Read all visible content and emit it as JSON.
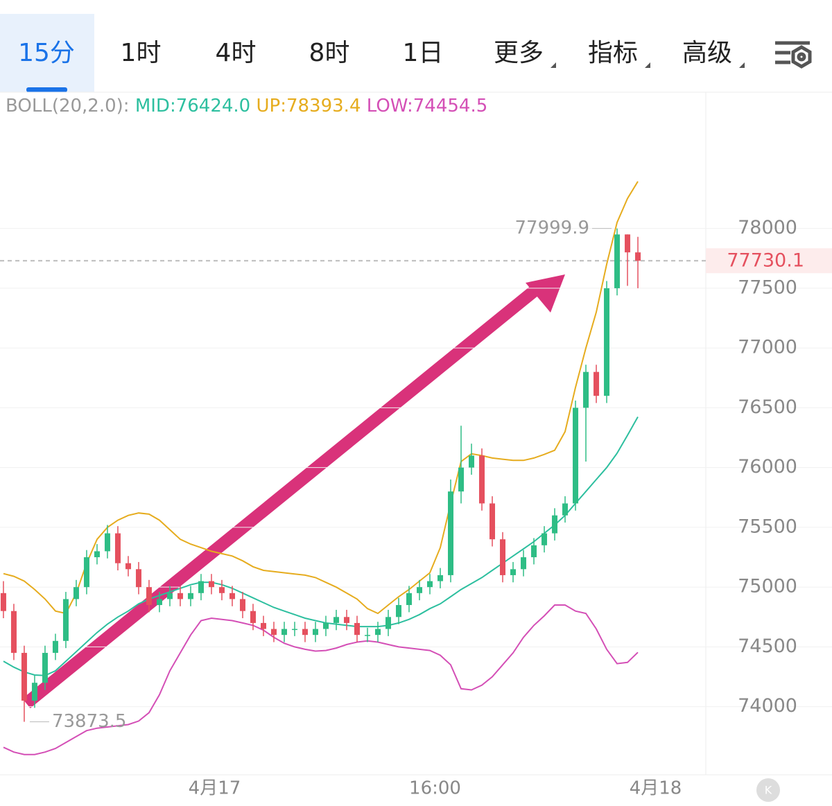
{
  "tabs": [
    "15分",
    "1时",
    "4时",
    "8时",
    "1日",
    "更多",
    "指标",
    "高级"
  ],
  "active_tab": 0,
  "chart_data": {
    "type": "candlestick",
    "indicator": {
      "label": "BOLL(20,2.0):",
      "series": [
        {
          "label": "MID:76424.0",
          "color": "#2dbf9f",
          "values": [
            74380,
            74330,
            74290,
            74265,
            74260,
            74300,
            74380,
            74460,
            74540,
            74620,
            74690,
            74750,
            74800,
            74860,
            74900,
            74930,
            74960,
            74990,
            75020,
            75040,
            75040,
            75020,
            74990,
            74950,
            74910,
            74870,
            74830,
            74800,
            74770,
            74740,
            74720,
            74700,
            74690,
            74680,
            74670,
            74670,
            74670,
            74680,
            74700,
            74730,
            74770,
            74820,
            74860,
            74920,
            74980,
            75030,
            75080,
            75140,
            75200,
            75260,
            75320,
            75380,
            75450,
            75520,
            75600,
            75700,
            75800,
            75900,
            76000,
            76120,
            76270,
            76424
          ]
        },
        {
          "label": "UP:78393.4",
          "color": "#e6ac1e",
          "values": [
            75113,
            75090,
            75050,
            74980,
            74900,
            74800,
            74780,
            74950,
            75200,
            75400,
            75500,
            75560,
            75600,
            75620,
            75610,
            75560,
            75480,
            75400,
            75360,
            75330,
            75300,
            75280,
            75260,
            75220,
            75170,
            75140,
            75130,
            75120,
            75110,
            75100,
            75080,
            75040,
            75000,
            74950,
            74900,
            74820,
            74780,
            74850,
            74920,
            74980,
            75050,
            75120,
            75330,
            75700,
            76050,
            76115,
            76100,
            76080,
            76070,
            76060,
            76060,
            76080,
            76110,
            76145,
            76300,
            76670,
            77000,
            77300,
            77700,
            78050,
            78250,
            78393.4
          ]
        },
        {
          "label": "LOW:74454.5",
          "color": "#d44fb6",
          "values": [
            73660,
            73620,
            73600,
            73600,
            73620,
            73650,
            73700,
            73750,
            73800,
            73820,
            73830,
            73840,
            73850,
            73880,
            73950,
            74100,
            74300,
            74450,
            74600,
            74720,
            74740,
            74730,
            74720,
            74700,
            74680,
            74640,
            74580,
            74530,
            74500,
            74480,
            74465,
            74470,
            74490,
            74520,
            74540,
            74550,
            74540,
            74520,
            74500,
            74490,
            74480,
            74470,
            74430,
            74350,
            74150,
            74140,
            74180,
            74250,
            74350,
            74450,
            74580,
            74680,
            74760,
            74850,
            74850,
            74800,
            74780,
            74650,
            74480,
            74360,
            74370,
            74454.5
          ]
        }
      ]
    },
    "open": [
      74950,
      74800,
      74450,
      74050,
      74200,
      74450,
      74550,
      74900,
      75000,
      75250,
      75300,
      75450,
      75200,
      75150,
      75000,
      74850,
      74900,
      74950,
      74900,
      74950,
      75050,
      75000,
      74950,
      74900,
      74800,
      74700,
      74650,
      74600,
      74650,
      74650,
      74600,
      74650,
      74700,
      74750,
      74700,
      74600,
      74600,
      74650,
      74750,
      74850,
      74950,
      75000,
      75050,
      75100,
      75800,
      76000,
      76100,
      75700,
      75400,
      75100,
      75150,
      75250,
      75350,
      75450,
      75600,
      75700,
      76500,
      76800,
      76600,
      77500,
      77950,
      77800
    ],
    "high": [
      75050,
      74860,
      74510,
      74260,
      74510,
      74610,
      74960,
      75060,
      75310,
      75360,
      75520,
      75510,
      75260,
      75210,
      75060,
      74960,
      75010,
      75010,
      75010,
      75110,
      75110,
      75060,
      75010,
      74960,
      74860,
      74760,
      74710,
      74710,
      74710,
      74710,
      74710,
      74760,
      74810,
      74810,
      74760,
      74660,
      74710,
      74810,
      74910,
      75010,
      75060,
      75110,
      75160,
      75900,
      76350,
      76200,
      76160,
      75760,
      75460,
      75210,
      75310,
      75410,
      75510,
      75660,
      75760,
      76560,
      76860,
      76860,
      77560,
      77999.9,
      77950,
      77930
    ],
    "low": [
      74740,
      74390,
      73873.5,
      73990,
      74140,
      74390,
      74490,
      74840,
      74940,
      75190,
      75240,
      75140,
      75090,
      74940,
      74790,
      74790,
      74840,
      74840,
      74840,
      74890,
      74940,
      74890,
      74840,
      74740,
      74640,
      74590,
      74540,
      74540,
      74590,
      74540,
      74540,
      74590,
      74640,
      74640,
      74540,
      74540,
      74540,
      74590,
      74690,
      74790,
      74890,
      74940,
      74990,
      75040,
      75700,
      75940,
      75640,
      75340,
      75040,
      75040,
      75090,
      75190,
      75290,
      75390,
      75540,
      75640,
      76050,
      76540,
      76540,
      77440,
      77520,
      77500
    ],
    "close": [
      74800,
      74450,
      74050,
      74200,
      74450,
      74550,
      74900,
      75000,
      75250,
      75300,
      75450,
      75200,
      75150,
      75000,
      74850,
      74900,
      74950,
      74900,
      74950,
      75050,
      75000,
      74950,
      74900,
      74800,
      74700,
      74650,
      74600,
      74650,
      74650,
      74600,
      74650,
      74700,
      74750,
      74700,
      74600,
      74600,
      74650,
      74750,
      74850,
      74950,
      75000,
      75050,
      75100,
      75800,
      76000,
      76100,
      75700,
      75400,
      75100,
      75150,
      75250,
      75350,
      75450,
      75600,
      75700,
      76500,
      76800,
      76600,
      77500,
      77950,
      77800,
      77730.1
    ],
    "up_color": "#2ebd85",
    "down_color": "#e5505e",
    "ylim": [
      73430,
      79140
    ],
    "yticks": [
      74000,
      74500,
      75000,
      75500,
      76000,
      76500,
      77000,
      77500,
      78000
    ],
    "xlim": [
      -0.33,
      67.53
    ],
    "xticks": [
      {
        "value": 20.3,
        "label": "4月17"
      },
      {
        "value": 41.5,
        "label": "16:00"
      },
      {
        "value": 62.7,
        "label": "4月18"
      }
    ],
    "last_price": 77730.1,
    "max_price": 77999.9,
    "min_price": 73873.5,
    "grid": true
  }
}
